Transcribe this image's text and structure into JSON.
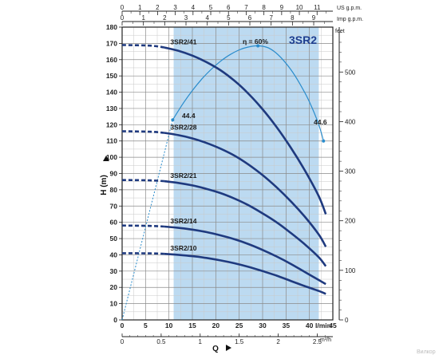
{
  "chart_data": {
    "type": "line",
    "title": "3SR2",
    "xlabel": "Q",
    "ylabel": "H (m)",
    "units": {
      "lmin": "l/min",
      "m3h": "m³/h",
      "usgpm": "US g.p.m.",
      "impgpm": "Imp g.p.m.",
      "feet": "feet"
    },
    "xlim": [
      0,
      45
    ],
    "ylim": [
      0,
      180
    ],
    "grid": true,
    "x_ticks_lmin": [
      0,
      5,
      10,
      15,
      20,
      25,
      30,
      35,
      40,
      45
    ],
    "x_ticks_m3h": [
      "0",
      "0.5",
      "1",
      "1.5",
      "2",
      "2.5"
    ],
    "x_ticks_usgpm": [
      "0",
      "1",
      "2",
      "3",
      "4",
      "5",
      "6",
      "7",
      "8",
      "9",
      "10",
      "11"
    ],
    "x_ticks_impgpm": [
      "0",
      "1",
      "2",
      "3",
      "4",
      "5",
      "6",
      "7",
      "8",
      "9"
    ],
    "y_ticks_m": [
      0,
      10,
      20,
      30,
      40,
      50,
      60,
      70,
      80,
      90,
      100,
      110,
      120,
      130,
      140,
      150,
      160,
      170,
      180
    ],
    "y_ticks_feet": [
      "0",
      "100",
      "200",
      "300",
      "400",
      "500",
      "feet"
    ],
    "working_range_lmin": [
      11,
      42
    ],
    "series": [
      {
        "name": "3SR2/41",
        "x": [
          0,
          6,
          9,
          12,
          15,
          18,
          21,
          24,
          27,
          30,
          33,
          36,
          39,
          42,
          43.5
        ],
        "y": [
          169,
          168.6,
          167.5,
          165.5,
          162.5,
          158.5,
          153.5,
          147,
          139,
          129.5,
          118.5,
          106,
          92,
          76,
          65
        ]
      },
      {
        "name": "3SR2/28",
        "x": [
          0,
          6,
          9,
          12,
          15,
          18,
          21,
          24,
          27,
          30,
          33,
          36,
          39,
          42,
          43.5
        ],
        "y": [
          116,
          115.7,
          115,
          113.6,
          111.6,
          108.8,
          105.3,
          101,
          95.5,
          89,
          81.5,
          73,
          63.5,
          52.5,
          45
        ]
      },
      {
        "name": "3SR2/21",
        "x": [
          0,
          6,
          9,
          12,
          15,
          18,
          21,
          24,
          27,
          30,
          33,
          36,
          39,
          42,
          43.5
        ],
        "y": [
          86,
          85.8,
          85.3,
          84.2,
          82.7,
          80.6,
          78,
          74.6,
          70.5,
          65.5,
          60,
          53.5,
          46.5,
          38.5,
          33
        ]
      },
      {
        "name": "3SR2/14",
        "x": [
          0,
          6,
          9,
          12,
          15,
          18,
          21,
          24,
          27,
          30,
          33,
          36,
          39,
          42,
          43.5
        ],
        "y": [
          58,
          57.8,
          57.4,
          56.6,
          55.5,
          54,
          52,
          49.6,
          46.6,
          43,
          39,
          34.5,
          29.5,
          24.5,
          22
        ]
      },
      {
        "name": "3SR2/10",
        "x": [
          0,
          6,
          9,
          12,
          15,
          18,
          21,
          24,
          27,
          30,
          33,
          36,
          39,
          42,
          43.5
        ],
        "y": [
          41,
          40.9,
          40.6,
          40,
          39.2,
          38.1,
          36.6,
          34.8,
          32.6,
          30,
          27.2,
          24,
          20.8,
          17.8,
          16
        ]
      }
    ],
    "efficiency": {
      "label": "η = 60%",
      "peak_label_left": "44.4",
      "peak_label_right": "44.6",
      "x": [
        10.8,
        13,
        15,
        17,
        19,
        21,
        23,
        25,
        27,
        29,
        31,
        32.5,
        34,
        36,
        38,
        40,
        42,
        43
      ],
      "y": [
        123,
        133,
        141,
        148,
        154,
        159,
        163,
        166,
        167.8,
        168.5,
        167.5,
        165,
        161,
        154,
        145,
        134,
        120,
        110
      ],
      "extension_x": [
        0,
        10.8
      ],
      "extension_y": [
        0,
        123
      ]
    },
    "watermark": "Вилкор"
  }
}
